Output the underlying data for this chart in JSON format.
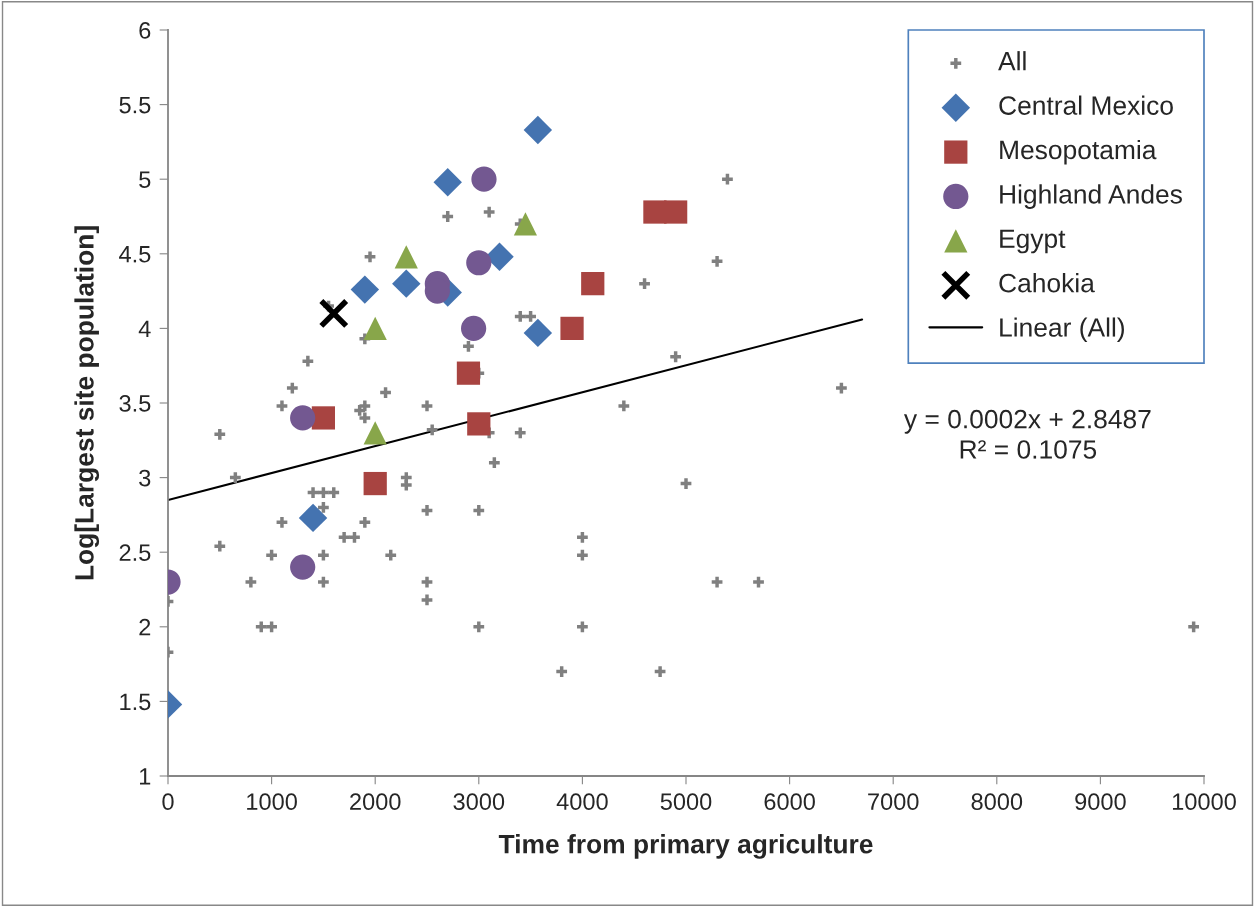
{
  "chart_data": {
    "type": "scatter",
    "xlabel": "Time from primary agriculture",
    "ylabel": "Log[Largest site population]",
    "xlim": [
      0,
      10000
    ],
    "xticks": [
      0,
      1000,
      2000,
      3000,
      4000,
      5000,
      6000,
      7000,
      8000,
      9000,
      10000
    ],
    "ylim": [
      1,
      6
    ],
    "yticks": [
      1,
      1.5,
      2,
      2.5,
      3,
      3.5,
      4,
      4.5,
      5,
      5.5,
      6
    ],
    "grid": false,
    "legend": "top right",
    "annotations": [
      "y = 0.0002x + 2.8487",
      "R² = 0.1075"
    ],
    "series": [
      {
        "name": "All",
        "color": "#808080",
        "marker": "plus",
        "x": [
          0,
          0,
          500,
          500,
          650,
          800,
          900,
          1000,
          1000,
          1100,
          1100,
          1200,
          1350,
          1400,
          1500,
          1600,
          1500,
          1500,
          1500,
          1550,
          1700,
          1800,
          1850,
          1900,
          1900,
          1900,
          1900,
          1950,
          2100,
          2150,
          2300,
          2300,
          2500,
          2550,
          2500,
          2500,
          2500,
          2700,
          2900,
          3000,
          3000,
          3000,
          3100,
          3100,
          3150,
          3400,
          3400,
          3500,
          3400,
          3800,
          4000,
          4000,
          4000,
          4400,
          4600,
          4750,
          4900,
          5000,
          5300,
          5300,
          5400,
          5700,
          6500,
          9900
        ],
        "values": [
          2.17,
          1.83,
          3.29,
          2.54,
          3.0,
          2.3,
          2.0,
          2.0,
          2.48,
          3.48,
          2.7,
          3.6,
          3.78,
          2.9,
          2.9,
          2.9,
          2.8,
          2.48,
          2.3,
          4.15,
          2.6,
          2.6,
          3.45,
          3.48,
          3.4,
          3.93,
          2.7,
          4.48,
          3.57,
          2.48,
          3.0,
          2.95,
          3.48,
          3.32,
          2.78,
          2.3,
          2.18,
          4.75,
          3.88,
          3.7,
          2.78,
          2.0,
          4.78,
          3.3,
          3.1,
          4.7,
          4.08,
          4.08,
          3.3,
          1.7,
          2.6,
          2.48,
          2.0,
          3.48,
          4.3,
          1.7,
          3.81,
          2.96,
          4.45,
          2.3,
          5.0,
          2.3,
          3.6,
          2.0
        ]
      },
      {
        "name": "Central Mexico",
        "color": "#4473b0",
        "marker": "diamond",
        "x": [
          0,
          1400,
          1900,
          2300,
          2700,
          2700,
          3200,
          3570,
          3570
        ],
        "values": [
          1.48,
          2.73,
          4.26,
          4.3,
          4.24,
          4.98,
          4.48,
          3.97,
          5.33
        ]
      },
      {
        "name": "Mesopotamia",
        "color": "#a84441",
        "marker": "square",
        "x": [
          1500,
          2000,
          2900,
          3000,
          3900,
          4100,
          4700,
          4900
        ],
        "values": [
          3.4,
          2.96,
          3.7,
          3.36,
          4.0,
          4.3,
          4.78,
          4.78
        ]
      },
      {
        "name": "Highland Andes",
        "color": "#735891",
        "marker": "circle",
        "x": [
          0,
          1300,
          1300,
          2600,
          2600,
          2950,
          3000,
          3050
        ],
        "values": [
          2.3,
          3.4,
          2.4,
          4.3,
          4.25,
          4.0,
          4.44,
          5.0
        ]
      },
      {
        "name": "Egypt",
        "color": "#88a64a",
        "marker": "triangle",
        "x": [
          2000,
          2000,
          2300,
          3450
        ],
        "values": [
          3.3,
          4.0,
          4.48,
          4.7
        ]
      },
      {
        "name": "Cahokia",
        "color": "#000000",
        "marker": "cross",
        "x": [
          1600
        ],
        "values": [
          4.1
        ]
      },
      {
        "name": "Linear (All)",
        "type": "line",
        "color": "#000000",
        "line_style": "solid",
        "x": [
          0,
          6700
        ],
        "values": [
          2.85,
          4.06
        ]
      }
    ]
  }
}
